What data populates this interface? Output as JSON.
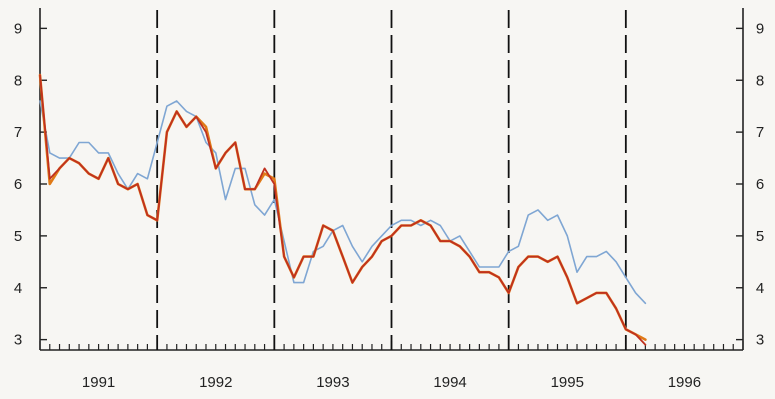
{
  "chart_data": {
    "type": "line",
    "title": "",
    "xlabel": "",
    "ylabel": "",
    "x_unit": "month index (0 = Jan 1991)",
    "xlim": [
      0,
      72
    ],
    "ylim": [
      2.8,
      9.2
    ],
    "y_ticks": [
      3,
      4,
      5,
      6,
      7,
      8,
      9
    ],
    "left_tick_labels": [
      "3",
      "4",
      "5",
      "6",
      "7",
      "8",
      "9"
    ],
    "right_tick_labels": [
      "3",
      "4",
      "5",
      "6",
      "7",
      "8",
      "9"
    ],
    "year_labels": [
      {
        "label": "1991",
        "x": 6
      },
      {
        "label": "1992",
        "x": 18
      },
      {
        "label": "1993",
        "x": 30
      },
      {
        "label": "1994",
        "x": 42
      },
      {
        "label": "1995",
        "x": 54
      },
      {
        "label": "1996",
        "x": 66
      }
    ],
    "year_dividers": [
      12,
      24,
      36,
      48,
      60
    ],
    "grid": false,
    "legend": "none",
    "colors": {
      "red": "#c0311f",
      "orange": "#e07a17",
      "blue": "#7fa6d3",
      "axis": "#222222"
    },
    "series": [
      {
        "color": "blue",
        "values": [
          [
            0,
            7.6
          ],
          [
            1,
            6.6
          ],
          [
            2,
            6.5
          ],
          [
            3,
            6.5
          ],
          [
            4,
            6.8
          ],
          [
            5,
            6.8
          ],
          [
            6,
            6.6
          ],
          [
            7,
            6.6
          ],
          [
            8,
            6.2
          ],
          [
            9,
            5.9
          ],
          [
            10,
            6.2
          ],
          [
            11,
            6.1
          ],
          [
            12,
            6.8
          ],
          [
            13,
            7.5
          ],
          [
            14,
            7.6
          ],
          [
            15,
            7.4
          ],
          [
            16,
            7.3
          ],
          [
            17,
            6.8
          ],
          [
            18,
            6.6
          ],
          [
            19,
            5.7
          ],
          [
            20,
            6.3
          ],
          [
            21,
            6.3
          ],
          [
            22,
            5.6
          ],
          [
            23,
            5.4
          ],
          [
            24,
            5.7
          ],
          [
            25,
            4.9
          ],
          [
            26,
            4.1
          ],
          [
            27,
            4.1
          ],
          [
            28,
            4.7
          ],
          [
            29,
            4.8
          ],
          [
            30,
            5.1
          ],
          [
            31,
            5.2
          ],
          [
            32,
            4.8
          ],
          [
            33,
            4.5
          ],
          [
            34,
            4.8
          ],
          [
            35,
            5.0
          ],
          [
            36,
            5.2
          ],
          [
            37,
            5.3
          ],
          [
            38,
            5.3
          ],
          [
            39,
            5.2
          ],
          [
            40,
            5.3
          ],
          [
            41,
            5.2
          ],
          [
            42,
            4.9
          ],
          [
            43,
            5.0
          ],
          [
            44,
            4.7
          ],
          [
            45,
            4.4
          ],
          [
            46,
            4.4
          ],
          [
            47,
            4.4
          ],
          [
            48,
            4.7
          ],
          [
            49,
            4.8
          ],
          [
            50,
            5.4
          ],
          [
            51,
            5.5
          ],
          [
            52,
            5.3
          ],
          [
            53,
            5.4
          ],
          [
            54,
            5.0
          ],
          [
            55,
            4.3
          ],
          [
            56,
            4.6
          ],
          [
            57,
            4.6
          ],
          [
            58,
            4.7
          ],
          [
            59,
            4.5
          ],
          [
            60,
            4.2
          ],
          [
            61,
            3.9
          ],
          [
            62,
            3.7
          ]
        ]
      },
      {
        "color": "orange",
        "values": [
          [
            0,
            8.1
          ],
          [
            1,
            6.0
          ],
          [
            2,
            6.3
          ],
          [
            3,
            6.5
          ],
          [
            4,
            6.4
          ],
          [
            5,
            6.2
          ],
          [
            6,
            6.1
          ],
          [
            7,
            6.5
          ],
          [
            8,
            6.0
          ],
          [
            9,
            5.9
          ],
          [
            10,
            6.0
          ],
          [
            11,
            5.4
          ],
          [
            12,
            5.3
          ],
          [
            13,
            7.0
          ],
          [
            14,
            7.4
          ],
          [
            15,
            7.1
          ],
          [
            16,
            7.3
          ],
          [
            17,
            7.1
          ],
          [
            18,
            6.3
          ],
          [
            19,
            6.6
          ],
          [
            20,
            6.8
          ],
          [
            21,
            5.9
          ],
          [
            22,
            5.9
          ],
          [
            23,
            6.2
          ],
          [
            24,
            6.1
          ],
          [
            25,
            4.6
          ],
          [
            26,
            4.2
          ],
          [
            27,
            4.6
          ],
          [
            28,
            4.6
          ],
          [
            29,
            5.2
          ],
          [
            30,
            5.1
          ],
          [
            31,
            4.6
          ],
          [
            32,
            4.1
          ],
          [
            33,
            4.4
          ],
          [
            34,
            4.6
          ],
          [
            35,
            4.9
          ],
          [
            36,
            5.0
          ],
          [
            37,
            5.2
          ],
          [
            38,
            5.2
          ],
          [
            39,
            5.3
          ],
          [
            40,
            5.2
          ],
          [
            41,
            4.9
          ],
          [
            42,
            4.9
          ],
          [
            43,
            4.8
          ],
          [
            44,
            4.6
          ],
          [
            45,
            4.3
          ],
          [
            46,
            4.3
          ],
          [
            47,
            4.2
          ],
          [
            48,
            3.9
          ],
          [
            49,
            4.4
          ],
          [
            50,
            4.6
          ],
          [
            51,
            4.6
          ],
          [
            52,
            4.5
          ],
          [
            53,
            4.6
          ],
          [
            54,
            4.2
          ],
          [
            55,
            3.7
          ],
          [
            56,
            3.8
          ],
          [
            57,
            3.9
          ],
          [
            58,
            3.9
          ],
          [
            59,
            3.6
          ],
          [
            60,
            3.2
          ],
          [
            61,
            3.1
          ],
          [
            62,
            3.0
          ]
        ]
      },
      {
        "color": "red",
        "values": [
          [
            0,
            8.1
          ],
          [
            1,
            6.1
          ],
          [
            2,
            6.3
          ],
          [
            3,
            6.5
          ],
          [
            4,
            6.4
          ],
          [
            5,
            6.2
          ],
          [
            6,
            6.1
          ],
          [
            7,
            6.5
          ],
          [
            8,
            6.0
          ],
          [
            9,
            5.9
          ],
          [
            10,
            6.0
          ],
          [
            11,
            5.4
          ],
          [
            12,
            5.3
          ],
          [
            13,
            7.0
          ],
          [
            14,
            7.4
          ],
          [
            15,
            7.1
          ],
          [
            16,
            7.3
          ],
          [
            17,
            7.0
          ],
          [
            18,
            6.3
          ],
          [
            19,
            6.6
          ],
          [
            20,
            6.8
          ],
          [
            21,
            5.9
          ],
          [
            22,
            5.9
          ],
          [
            23,
            6.3
          ],
          [
            24,
            6.0
          ],
          [
            25,
            4.6
          ],
          [
            26,
            4.2
          ],
          [
            27,
            4.6
          ],
          [
            28,
            4.6
          ],
          [
            29,
            5.2
          ],
          [
            30,
            5.1
          ],
          [
            31,
            4.6
          ],
          [
            32,
            4.1
          ],
          [
            33,
            4.4
          ],
          [
            34,
            4.6
          ],
          [
            35,
            4.9
          ],
          [
            36,
            5.0
          ],
          [
            37,
            5.2
          ],
          [
            38,
            5.2
          ],
          [
            39,
            5.3
          ],
          [
            40,
            5.2
          ],
          [
            41,
            4.9
          ],
          [
            42,
            4.9
          ],
          [
            43,
            4.8
          ],
          [
            44,
            4.6
          ],
          [
            45,
            4.3
          ],
          [
            46,
            4.3
          ],
          [
            47,
            4.2
          ],
          [
            48,
            3.9
          ],
          [
            49,
            4.4
          ],
          [
            50,
            4.6
          ],
          [
            51,
            4.6
          ],
          [
            52,
            4.5
          ],
          [
            53,
            4.6
          ],
          [
            54,
            4.2
          ],
          [
            55,
            3.7
          ],
          [
            56,
            3.8
          ],
          [
            57,
            3.9
          ],
          [
            58,
            3.9
          ],
          [
            59,
            3.6
          ],
          [
            60,
            3.2
          ],
          [
            61,
            3.1
          ],
          [
            62,
            2.9
          ]
        ]
      }
    ]
  }
}
